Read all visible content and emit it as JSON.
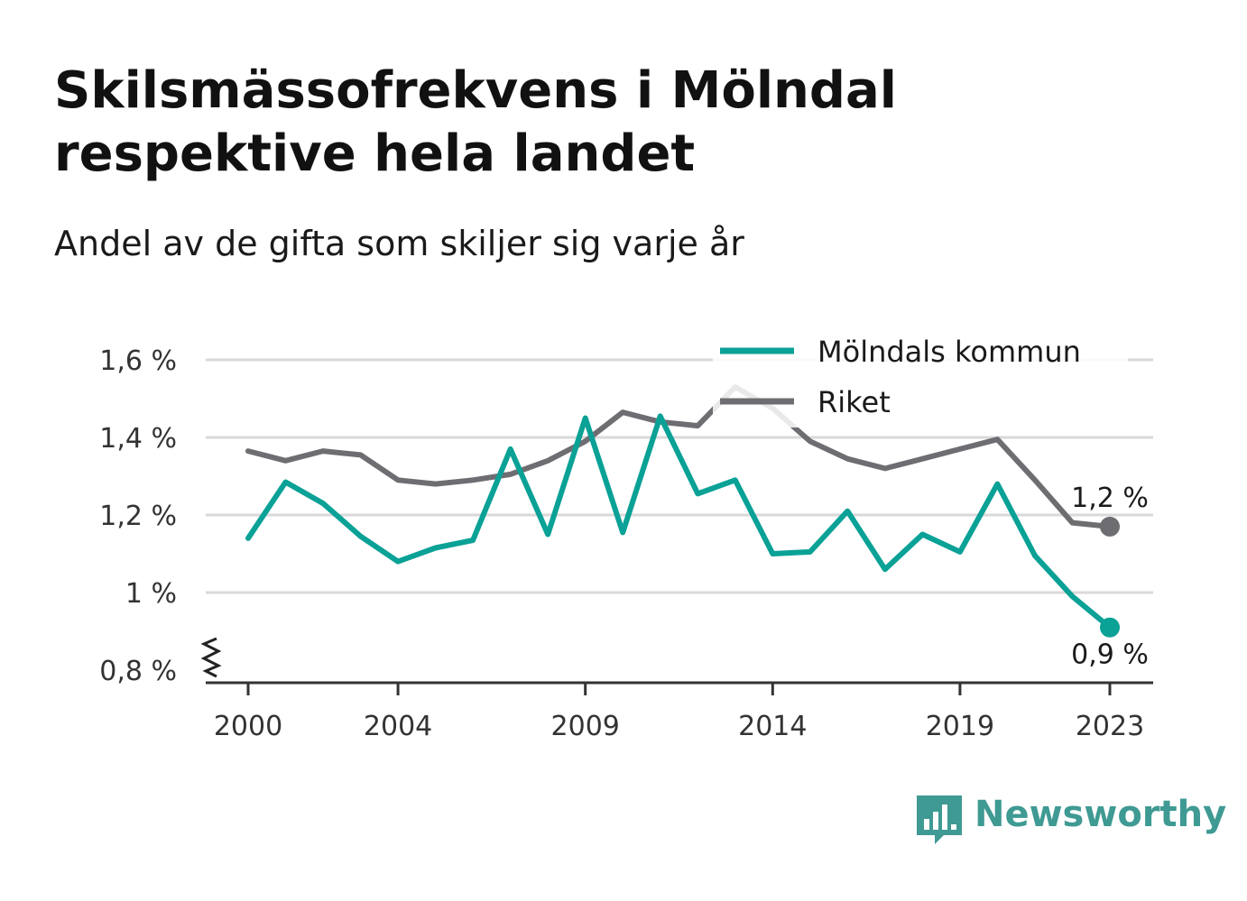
{
  "title": "Skilsmässofrekvens i Mölndal respektive hela landet",
  "subtitle": "Andel av de gifta som skiljer sig varje år",
  "brand": "Newsworthy",
  "colors": {
    "molndal": "#0aa196",
    "riket": "#6e6d72",
    "grid": "#d9d9d9",
    "brand": "#3f9a93"
  },
  "chart_data": {
    "type": "line",
    "x": [
      2000,
      2001,
      2002,
      2003,
      2004,
      2005,
      2006,
      2007,
      2008,
      2009,
      2010,
      2011,
      2012,
      2013,
      2014,
      2015,
      2016,
      2017,
      2018,
      2019,
      2020,
      2021,
      2022,
      2023
    ],
    "x_ticks": [
      2000,
      2004,
      2009,
      2014,
      2019,
      2023
    ],
    "x_tick_labels": [
      "2000",
      "2004",
      "2009",
      "2014",
      "2019",
      "2023"
    ],
    "y_ticks": [
      0.8,
      1.0,
      1.2,
      1.4,
      1.6
    ],
    "y_tick_labels": [
      "0,8 %",
      "1 %",
      "1,2 %",
      "1,4 %",
      "1,6 %"
    ],
    "ylim": [
      0.8,
      1.6
    ],
    "axis_break": true,
    "grid": true,
    "legend_position": "top-right",
    "series": [
      {
        "name": "Mölndals kommun",
        "color": "#0aa196",
        "values": [
          1.14,
          1.285,
          1.23,
          1.145,
          1.08,
          1.115,
          1.135,
          1.37,
          1.15,
          1.45,
          1.155,
          1.455,
          1.255,
          1.29,
          1.1,
          1.105,
          1.21,
          1.06,
          1.15,
          1.105,
          1.28,
          1.095,
          0.99,
          0.91
        ],
        "end_label": "0,9 %"
      },
      {
        "name": "Riket",
        "color": "#6e6d72",
        "values": [
          1.365,
          1.34,
          1.365,
          1.355,
          1.29,
          1.28,
          1.29,
          1.305,
          1.34,
          1.39,
          1.465,
          1.44,
          1.43,
          1.53,
          1.475,
          1.39,
          1.345,
          1.32,
          1.345,
          1.37,
          1.395,
          1.29,
          1.18,
          1.17
        ],
        "end_label": "1,2 %"
      }
    ]
  }
}
